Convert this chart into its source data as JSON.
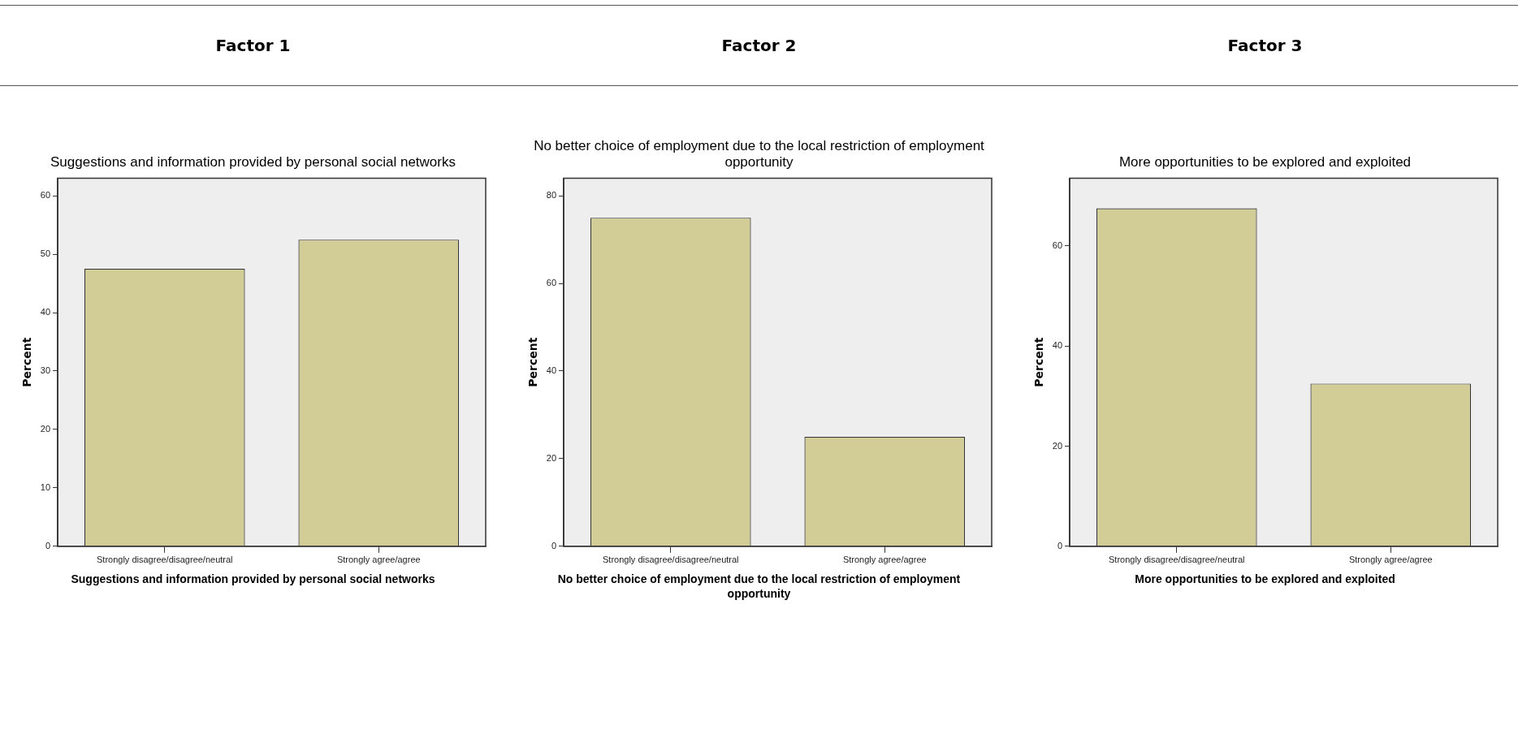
{
  "chart_data": [
    {
      "type": "bar",
      "subtitle": "Factor 1",
      "title": "Suggestions and information provided by personal social networks",
      "xlabel": "Suggestions and information provided by personal social networks",
      "ylabel": "Percent",
      "categories": [
        "Strongly disagree/disagree/neutral",
        "Strongly agree/agree"
      ],
      "values": [
        47.5,
        52.5
      ],
      "color": "#d2cc96",
      "ylim": [
        0,
        63
      ],
      "yticks": [
        0,
        10,
        20,
        30,
        40,
        50,
        60
      ],
      "grid": false
    },
    {
      "type": "bar",
      "subtitle": "Factor 2",
      "title": "No better choice of employment due to the local restriction of employment opportunity",
      "xlabel": "No better choice of employment due to the local restriction of employment opportunity",
      "ylabel": "Percent",
      "categories": [
        "Strongly disagree/disagree/neutral",
        "Strongly agree/agree"
      ],
      "values": [
        75,
        25
      ],
      "color": "#d2cc96",
      "ylim": [
        0,
        84
      ],
      "yticks": [
        0,
        20,
        40,
        60,
        80
      ],
      "grid": false
    },
    {
      "type": "bar",
      "subtitle": "Factor 3",
      "title": "More opportunities to be explored and exploited",
      "xlabel": "More opportunities to be explored and exploited",
      "ylabel": "Percent",
      "categories": [
        "Strongly disagree/disagree/neutral",
        "Strongly agree/agree"
      ],
      "values": [
        67.5,
        32.5
      ],
      "color": "#d2cc96",
      "ylim": [
        0,
        73.5
      ],
      "yticks": [
        0,
        20,
        40,
        60
      ],
      "grid": false
    }
  ]
}
